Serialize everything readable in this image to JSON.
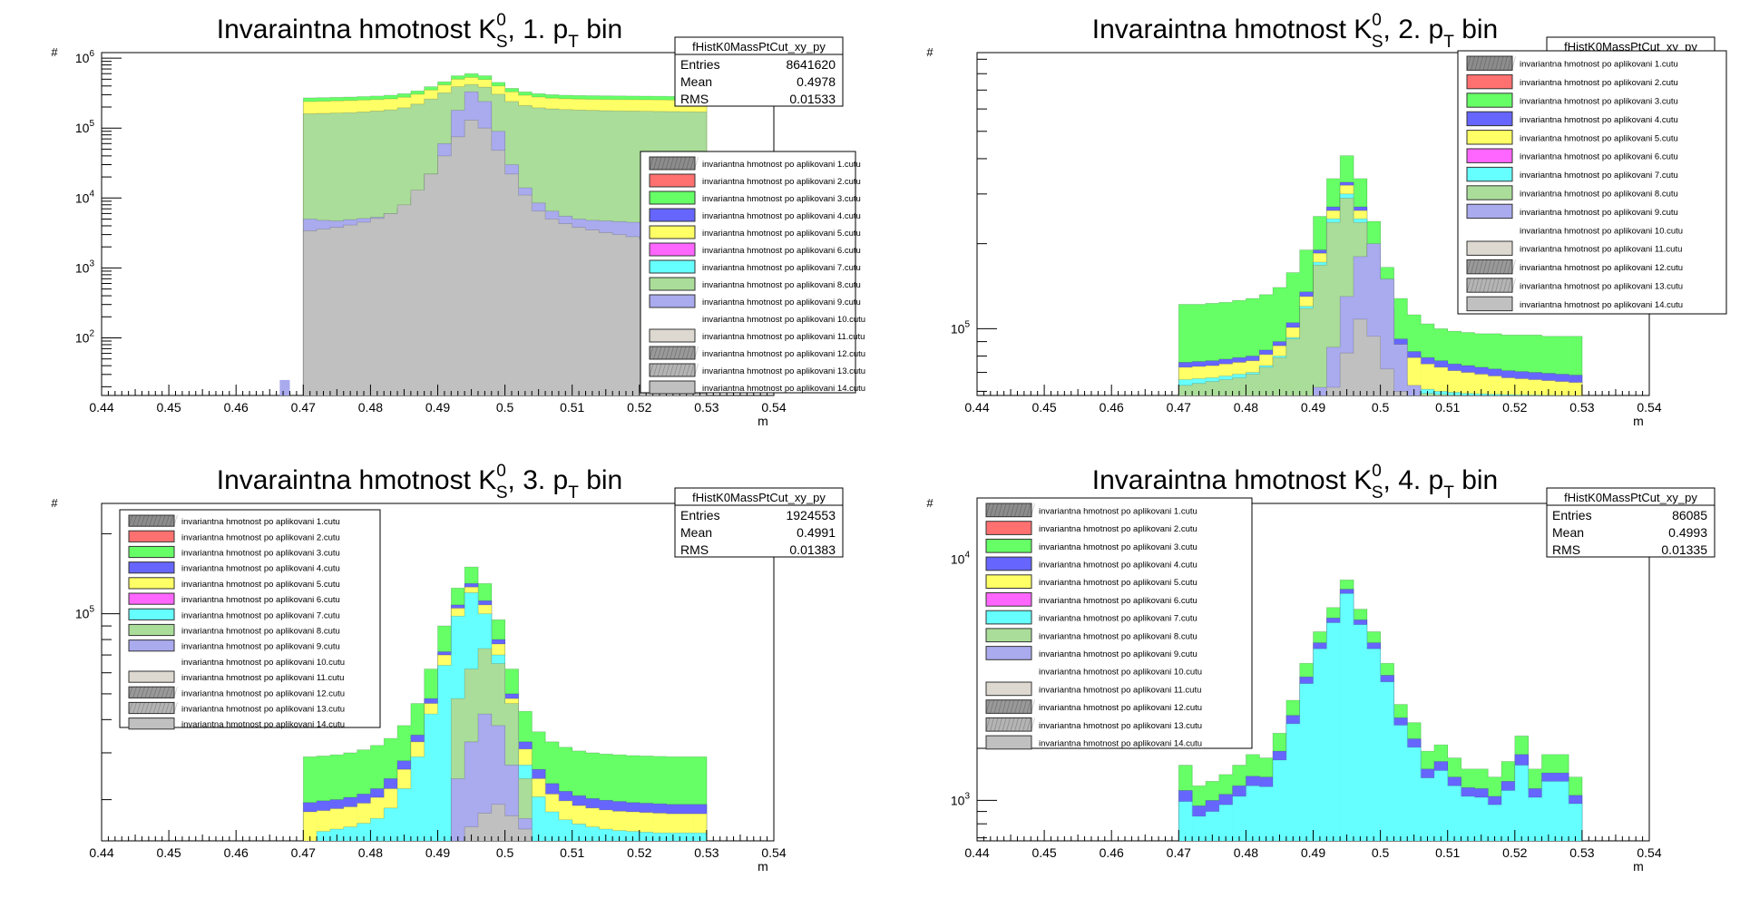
{
  "legend_entries": [
    "invariantna hmotnost po aplikovani 1.cutu",
    "invariantna hmotnost po aplikovani 2.cutu",
    "invariantna hmotnost po aplikovani 3.cutu",
    "invariantna hmotnost po aplikovani 4.cutu",
    "invariantna hmotnost po aplikovani 5.cutu",
    "invariantna hmotnost po aplikovani 6.cutu",
    "invariantna hmotnost po aplikovani 7.cutu",
    "invariantna hmotnost po aplikovani 8.cutu",
    "invariantna hmotnost po aplikovani 9.cutu",
    "invariantna hmotnost po aplikovani 10.cutu",
    "invariantna hmotnost po aplikovani 11.cutu",
    "invariantna hmotnost po aplikovani 12.cutu",
    "invariantna hmotnost po aplikovani 13.cutu",
    "invariantna hmotnost po aplikovani 14.cutu"
  ],
  "legend_colors": [
    "#8c8c8c",
    "#ff7070",
    "#66ff66",
    "#6666ff",
    "#ffff66",
    "#ff66ff",
    "#66ffff",
    "#aadd99",
    "#aaaaee",
    "#ffffff",
    "#ddd8d0",
    "#999999",
    "#b4b4b4",
    "#c0c0c0"
  ],
  "chart_data": [
    {
      "type": "histogram",
      "title_main": "Invaraintna hmotnost K",
      "title_sup": "0",
      "title_sub": "S",
      "title_mid": ", 1. p",
      "title_sub2": "T",
      "title_end": " bin",
      "ylabel": "#",
      "xlabel": "m",
      "xlim": [
        0.44,
        0.54
      ],
      "x_ticks": [
        "0.44",
        "0.45",
        "0.46",
        "0.47",
        "0.48",
        "0.49",
        "0.5",
        "0.51",
        "0.52",
        "0.53",
        "0.54"
      ],
      "y_scale": "log",
      "ylim": [
        15,
        1200000
      ],
      "y_ticks": [
        {
          "base": "10",
          "exp": "2",
          "value": 100
        },
        {
          "base": "10",
          "exp": "3",
          "value": 1000
        },
        {
          "base": "10",
          "exp": "4",
          "value": 10000
        },
        {
          "base": "10",
          "exp": "5",
          "value": 100000
        },
        {
          "base": "10",
          "exp": "6",
          "value": 1000000
        }
      ],
      "stats": {
        "name": "fHistK0MassPtCut_xy_py",
        "entries_label": "Entries",
        "entries": "8641620",
        "mean_label": "Mean",
        "mean": "0.4978",
        "rms_label": "RMS",
        "rms": "0.01533"
      },
      "legend_position": "right",
      "layers": [
        {
          "color": "#66ff66",
          "values": [
            270000,
            272000,
            275000,
            278000,
            282000,
            287000,
            295000,
            310000,
            340000,
            390000,
            460000,
            560000,
            600000,
            560000,
            450000,
            370000,
            330000,
            310000,
            300000,
            295000,
            292000,
            290000,
            289000,
            288000,
            287000,
            286000,
            285000,
            284000,
            283000,
            282000
          ]
        },
        {
          "color": "#ffff66",
          "values": [
            240000,
            242000,
            245000,
            248000,
            252000,
            256000,
            262000,
            276000,
            305000,
            350000,
            415000,
            500000,
            530000,
            495000,
            400000,
            330000,
            295000,
            278000,
            268000,
            263000,
            260000,
            258000,
            257000,
            256000,
            255000,
            254000,
            253000,
            252000,
            251000,
            250000
          ]
        },
        {
          "color": "#aadd99",
          "values": [
            160000,
            162000,
            164000,
            166000,
            170000,
            175000,
            182000,
            195000,
            220000,
            260000,
            320000,
            390000,
            420000,
            385000,
            305000,
            240000,
            210000,
            195000,
            188000,
            184000,
            181000,
            179000,
            177000,
            176000,
            175000,
            174000,
            173000,
            172000,
            171000,
            170000
          ]
        },
        {
          "color": "#aaaaee",
          "values": [
            5000,
            4800,
            4700,
            4900,
            5100,
            5300,
            6000,
            7000,
            10000,
            22000,
            60000,
            180000,
            330000,
            240000,
            90000,
            30000,
            14000,
            8500,
            6500,
            5500,
            5000,
            4800,
            4700,
            4600,
            4500,
            4400,
            4300,
            4200,
            4100,
            4000
          ]
        },
        {
          "color": "#c0c0c0",
          "values": [
            3400,
            3600,
            3800,
            4100,
            4500,
            5100,
            6000,
            8000,
            13000,
            22000,
            40000,
            75000,
            130000,
            100000,
            48000,
            22000,
            11000,
            6500,
            5000,
            4300,
            3800,
            3500,
            3200,
            3000,
            2800,
            2600,
            2500,
            2400,
            2300,
            2200
          ]
        }
      ]
    },
    {
      "type": "histogram",
      "title_main": "Invaraintna hmotnost K",
      "title_sup": "0",
      "title_sub": "S",
      "title_mid": ", 2. p",
      "title_sub2": "T",
      "title_end": " bin",
      "ylabel": "#",
      "xlabel": "m",
      "xlim": [
        0.44,
        0.54
      ],
      "x_ticks": [
        "0.44",
        "0.45",
        "0.46",
        "0.47",
        "0.48",
        "0.49",
        "0.5",
        "0.51",
        "0.52",
        "0.53",
        "0.54"
      ],
      "y_scale": "log",
      "ylim": [
        58000,
        950000
      ],
      "y_ticks": [
        {
          "base": "10",
          "exp": "5",
          "value": 100000
        }
      ],
      "stats": {
        "name": "fHistK0MassPtCut_xy_py",
        "entries_label": "",
        "entries": "",
        "mean_label": "",
        "mean": "",
        "rms_label": "",
        "rms": ""
      },
      "legend_position": "right",
      "layers": [
        {
          "color": "#66ff66",
          "values": [
            122000,
            122000,
            123000,
            124000,
            126000,
            128000,
            132000,
            140000,
            158000,
            190000,
            250000,
            340000,
            410000,
            340000,
            240000,
            165000,
            128000,
            112000,
            104000,
            100000,
            98000,
            97000,
            96000,
            96000,
            95000,
            95000,
            95000,
            94000,
            94000,
            94000
          ]
        },
        {
          "color": "#6666ff",
          "values": [
            76000,
            76500,
            77000,
            78000,
            79000,
            80000,
            84000,
            90000,
            105000,
            135000,
            190000,
            270000,
            330000,
            270000,
            180000,
            118000,
            92000,
            83000,
            79000,
            77000,
            75000,
            74000,
            73000,
            72000,
            71000,
            70500,
            70000,
            69500,
            69000,
            68500
          ]
        },
        {
          "color": "#ffff66",
          "values": [
            73000,
            73500,
            74000,
            75000,
            76000,
            77000,
            81000,
            87000,
            101000,
            130000,
            185000,
            262000,
            322000,
            262000,
            175000,
            114000,
            88000,
            79000,
            75000,
            73000,
            71000,
            70000,
            69000,
            68000,
            67000,
            66500,
            66000,
            65500,
            65000,
            64500
          ]
        },
        {
          "color": "#66ffff",
          "values": [
            66000,
            66500,
            67000,
            68000,
            69000,
            70000,
            74000,
            80000,
            93000,
            120000,
            172000,
            245000,
            300000,
            245000,
            162000,
            105000,
            66000,
            62000,
            61000,
            60000,
            59500,
            59000,
            58800,
            58600,
            58400,
            58300,
            58200,
            58100,
            58050,
            58000
          ]
        },
        {
          "color": "#aadd99",
          "values": [
            63000,
            64000,
            65000,
            66000,
            67000,
            69000,
            73000,
            79000,
            92000,
            118000,
            168000,
            238000,
            290000,
            238000,
            158000,
            102000,
            64000,
            60000,
            59000,
            58500,
            58200,
            58100,
            58050,
            58000,
            58000,
            58000,
            58000,
            58000,
            58000,
            58000
          ]
        },
        {
          "color": "#aaaaee",
          "values": [
            0,
            0,
            0,
            0,
            0,
            0,
            0,
            0,
            0,
            0,
            62000,
            86000,
            130000,
            180000,
            200000,
            150000,
            88000,
            63000,
            0,
            0,
            0,
            0,
            0,
            0,
            0,
            0,
            0,
            0,
            0,
            0
          ]
        },
        {
          "color": "#c0c0c0",
          "values": [
            0,
            0,
            0,
            0,
            0,
            0,
            0,
            0,
            0,
            0,
            0,
            62000,
            82000,
            108000,
            94000,
            72000,
            60000,
            0,
            0,
            0,
            0,
            0,
            0,
            0,
            0,
            0,
            0,
            0,
            0,
            0
          ]
        }
      ]
    },
    {
      "type": "histogram",
      "title_main": "Invaraintna hmotnost K",
      "title_sup": "0",
      "title_sub": "S",
      "title_mid": ", 3. p",
      "title_sub2": "T",
      "title_end": " bin",
      "ylabel": "#",
      "xlabel": "m",
      "xlim": [
        0.44,
        0.54
      ],
      "x_ticks": [
        "0.44",
        "0.45",
        "0.46",
        "0.47",
        "0.48",
        "0.49",
        "0.5",
        "0.51",
        "0.52",
        "0.53",
        "0.54"
      ],
      "y_scale": "log",
      "ylim": [
        14000,
        260000
      ],
      "y_ticks": [
        {
          "base": "10",
          "exp": "5",
          "value": 100000
        }
      ],
      "stats": {
        "name": "fHistK0MassPtCut_xy_py",
        "entries_label": "Entries",
        "entries": "1924553",
        "mean_label": "Mean",
        "mean": "0.4991",
        "rms_label": "RMS",
        "rms": "0.01383"
      },
      "legend_position": "left",
      "layers": [
        {
          "color": "#66ff66",
          "values": [
            29000,
            29200,
            29500,
            30000,
            30800,
            32000,
            34000,
            38000,
            46000,
            62000,
            90000,
            125000,
            150000,
            130000,
            95000,
            62000,
            43000,
            36000,
            33000,
            31500,
            30500,
            30000,
            29700,
            29500,
            29300,
            29200,
            29100,
            29000,
            29000,
            29000
          ]
        },
        {
          "color": "#6666ff",
          "values": [
            19500,
            19800,
            20000,
            20400,
            21000,
            22000,
            24000,
            28000,
            35000,
            48000,
            72000,
            108000,
            130000,
            112000,
            80000,
            50000,
            33000,
            26000,
            23000,
            21500,
            20700,
            20200,
            19900,
            19700,
            19500,
            19400,
            19300,
            19200,
            19200,
            19200
          ]
        },
        {
          "color": "#ffff66",
          "values": [
            18000,
            18200,
            18500,
            18800,
            19400,
            20400,
            22000,
            26000,
            33000,
            46000,
            70000,
            105000,
            126000,
            108000,
            77000,
            48000,
            31000,
            24000,
            21000,
            19800,
            19000,
            18600,
            18300,
            18100,
            18000,
            17900,
            17800,
            17700,
            17700,
            17700
          ]
        },
        {
          "color": "#66ffff",
          "values": [
            0,
            15200,
            15500,
            15800,
            16300,
            17000,
            18600,
            22000,
            29000,
            42000,
            64000,
            98000,
            120000,
            100000,
            70000,
            43000,
            27000,
            20500,
            18000,
            16800,
            16200,
            15800,
            15500,
            15300,
            15200,
            15100,
            15000,
            15000,
            15000,
            15000
          ]
        },
        {
          "color": "#aadd99",
          "values": [
            0,
            0,
            0,
            0,
            0,
            0,
            0,
            0,
            0,
            0,
            0,
            48000,
            62000,
            74000,
            65000,
            46000,
            24000,
            0,
            0,
            0,
            0,
            0,
            0,
            0,
            0,
            0,
            0,
            0,
            0,
            0
          ]
        },
        {
          "color": "#aaaaee",
          "values": [
            0,
            0,
            0,
            0,
            0,
            0,
            0,
            0,
            0,
            0,
            0,
            24000,
            33000,
            42000,
            38000,
            27000,
            17000,
            0,
            0,
            0,
            0,
            0,
            0,
            0,
            0,
            0,
            0,
            0,
            0,
            0
          ]
        },
        {
          "color": "#c0c0c0",
          "values": [
            0,
            0,
            0,
            0,
            0,
            0,
            0,
            0,
            0,
            0,
            0,
            0,
            15800,
            17800,
            19200,
            17400,
            15500,
            0,
            0,
            0,
            0,
            0,
            0,
            0,
            0,
            0,
            0,
            0,
            0,
            0
          ]
        }
      ]
    },
    {
      "type": "histogram",
      "title_main": "Invaraintna hmotnost K",
      "title_sup": "0",
      "title_sub": "S",
      "title_mid": ", 4. p",
      "title_sub2": "T",
      "title_end": " bin",
      "ylabel": "#",
      "xlabel": "m",
      "xlim": [
        0.44,
        0.54
      ],
      "x_ticks": [
        "0.44",
        "0.45",
        "0.46",
        "0.47",
        "0.48",
        "0.49",
        "0.5",
        "0.51",
        "0.52",
        "0.53",
        "0.54"
      ],
      "y_scale": "log",
      "ylim": [
        680,
        17000
      ],
      "y_ticks": [
        {
          "base": "10",
          "exp": "3",
          "value": 1000
        },
        {
          "base": "10",
          "exp": "4",
          "value": 10000
        }
      ],
      "stats": {
        "name": "fHistK0MassPtCut_xy_py",
        "entries_label": "Entries",
        "entries": "86085",
        "mean_label": "Mean",
        "mean": "0.4993",
        "rms_label": "RMS",
        "rms": "0.01335"
      },
      "legend_position": "left",
      "layers": [
        {
          "color": "#66ff66",
          "values": [
            1400,
            1150,
            1200,
            1280,
            1400,
            1550,
            1500,
            1900,
            2600,
            3700,
            5000,
            6300,
            8200,
            6200,
            5000,
            3700,
            2500,
            2100,
            1600,
            1700,
            1500,
            1350,
            1350,
            1250,
            1450,
            1850,
            1350,
            1550,
            1550,
            1250
          ]
        },
        {
          "color": "#6666ff",
          "values": [
            1100,
            950,
            1000,
            1060,
            1150,
            1260,
            1250,
            1600,
            2250,
            3250,
            4500,
            5700,
            7500,
            5600,
            4500,
            3300,
            2200,
            1800,
            1350,
            1450,
            1250,
            1130,
            1120,
            1040,
            1200,
            1550,
            1120,
            1300,
            1300,
            1050
          ]
        },
        {
          "color": "#66ffff",
          "values": [
            990,
            860,
            900,
            960,
            1040,
            1150,
            1140,
            1470,
            2080,
            3050,
            4250,
            5450,
            7200,
            5350,
            4250,
            3100,
            2050,
            1660,
            1240,
            1330,
            1150,
            1040,
            1030,
            960,
            1100,
            1400,
            1030,
            1200,
            1200,
            970
          ]
        }
      ]
    }
  ]
}
